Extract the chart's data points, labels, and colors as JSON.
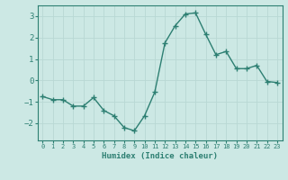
{
  "x": [
    0,
    1,
    2,
    3,
    4,
    5,
    6,
    7,
    8,
    9,
    10,
    11,
    12,
    13,
    14,
    15,
    16,
    17,
    18,
    19,
    20,
    21,
    22,
    23
  ],
  "y": [
    -0.75,
    -0.9,
    -0.9,
    -1.2,
    -1.2,
    -0.8,
    -1.4,
    -1.65,
    -2.2,
    -2.35,
    -1.65,
    -0.55,
    1.75,
    2.55,
    3.1,
    3.15,
    2.15,
    1.2,
    1.35,
    0.55,
    0.55,
    0.7,
    -0.05,
    -0.1
  ],
  "xlabel": "Humidex (Indice chaleur)",
  "ylim": [
    -2.8,
    3.5
  ],
  "xlim": [
    -0.5,
    23.5
  ],
  "yticks": [
    -2,
    -1,
    0,
    1,
    2,
    3
  ],
  "xtick_labels": [
    "0",
    "1",
    "2",
    "3",
    "4",
    "5",
    "6",
    "7",
    "8",
    "9",
    "10",
    "11",
    "12",
    "13",
    "14",
    "15",
    "16",
    "17",
    "18",
    "19",
    "20",
    "21",
    "22",
    "23"
  ],
  "line_color": "#2d7f72",
  "marker_color": "#2d7f72",
  "bg_color": "#cce8e4",
  "grid_color": "#b8d8d4",
  "axes_color": "#2d7f72",
  "tick_color": "#2d7f72",
  "label_color": "#2d7f72",
  "font_family": "monospace"
}
